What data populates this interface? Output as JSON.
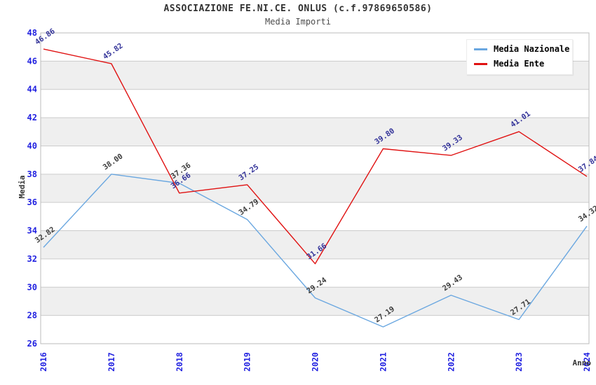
{
  "header": {
    "title": "ASSOCIAZIONE FE.NI.CE. ONLUS (c.f.97869650586)",
    "subtitle": "Media Importi"
  },
  "chart_data": {
    "type": "line",
    "title": "ASSOCIAZIONE FE.NI.CE. ONLUS (c.f.97869650586)",
    "subtitle": "Media Importi",
    "xlabel": "Anno",
    "ylabel": "Media",
    "categories": [
      "2016",
      "2017",
      "2018",
      "2019",
      "2020",
      "2021",
      "2022",
      "2023",
      "2024"
    ],
    "ylim": [
      26,
      48
    ],
    "yticks": [
      26,
      28,
      30,
      32,
      34,
      36,
      38,
      40,
      42,
      44,
      46,
      48
    ],
    "grid": true,
    "legend_position": "top-right",
    "series": [
      {
        "name": "Media Nazionale",
        "color": "#6aa7e0",
        "label_color": "#3d3d3d",
        "values": [
          32.82,
          38.0,
          37.36,
          34.79,
          29.24,
          27.19,
          29.43,
          27.71,
          34.32
        ]
      },
      {
        "name": "Media Ente",
        "color": "#e01212",
        "label_color": "#333399",
        "values": [
          46.86,
          45.82,
          36.66,
          37.25,
          31.66,
          39.8,
          39.33,
          41.01,
          37.84
        ]
      }
    ],
    "colors": {
      "tick_label": "#1f1fe0",
      "grid_line": "#cccccc",
      "band_fill": "#efefef",
      "plot_border": "#bbbbbb",
      "title": "#333333",
      "axis_title": "#333333"
    }
  }
}
